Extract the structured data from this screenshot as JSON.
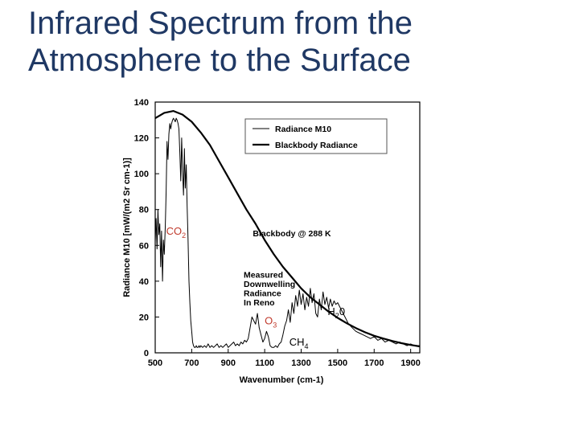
{
  "slide": {
    "title_line1": "Infrared Spectrum from the",
    "title_line2": "Atmosphere to the Surface"
  },
  "chart_data": {
    "type": "line",
    "title": "",
    "xlabel": "Wavenumber (cm-1)",
    "ylabel": "Radiance M10 [mW/(m2 Sr cm-1)]",
    "xlim": [
      500,
      1950
    ],
    "ylim": [
      0,
      140
    ],
    "xticks": [
      500,
      700,
      900,
      1100,
      1300,
      1500,
      1700,
      1900
    ],
    "yticks": [
      0,
      20,
      40,
      60,
      80,
      100,
      120,
      140
    ],
    "grid": false,
    "legend": {
      "position": "top-right",
      "entries": [
        "Radiance M10",
        "Blackbody Radiance"
      ]
    },
    "series": [
      {
        "name": "Radiance M10",
        "color": "#000000",
        "x": [
          500,
          505,
          510,
          515,
          520,
          525,
          530,
          535,
          540,
          545,
          550,
          555,
          560,
          565,
          570,
          575,
          580,
          585,
          590,
          595,
          600,
          605,
          610,
          615,
          620,
          625,
          630,
          635,
          640,
          645,
          650,
          655,
          660,
          665,
          670,
          675,
          680,
          685,
          690,
          695,
          700,
          705,
          710,
          715,
          720,
          725,
          730,
          735,
          740,
          745,
          750,
          760,
          770,
          780,
          790,
          800,
          810,
          820,
          830,
          840,
          850,
          860,
          870,
          880,
          890,
          900,
          910,
          920,
          930,
          940,
          950,
          960,
          970,
          980,
          990,
          1000,
          1010,
          1020,
          1030,
          1040,
          1050,
          1060,
          1070,
          1080,
          1090,
          1100,
          1110,
          1120,
          1130,
          1140,
          1150,
          1160,
          1170,
          1180,
          1190,
          1200,
          1210,
          1220,
          1230,
          1240,
          1250,
          1260,
          1270,
          1280,
          1290,
          1300,
          1310,
          1320,
          1330,
          1340,
          1350,
          1360,
          1370,
          1380,
          1390,
          1400,
          1410,
          1420,
          1430,
          1440,
          1450,
          1460,
          1470,
          1480,
          1490,
          1500,
          1520,
          1540,
          1560,
          1580,
          1600,
          1620,
          1640,
          1660,
          1680,
          1700,
          1720,
          1740,
          1760,
          1780,
          1800,
          1820,
          1840,
          1860,
          1880,
          1900,
          1920,
          1940,
          1950
        ],
        "y": [
          62,
          75,
          58,
          80,
          66,
          72,
          48,
          68,
          40,
          63,
          55,
          70,
          90,
          118,
          108,
          122,
          128,
          125,
          128,
          130,
          131,
          130,
          129,
          131,
          130,
          128,
          125,
          112,
          96,
          120,
          102,
          88,
          114,
          92,
          105,
          82,
          64,
          40,
          28,
          18,
          12,
          6,
          4,
          3,
          3,
          4,
          3,
          3,
          4,
          3,
          4,
          3,
          4,
          3,
          5,
          3,
          4,
          3,
          4,
          5,
          3,
          4,
          3,
          4,
          5,
          3,
          4,
          5,
          6,
          4,
          5,
          4,
          6,
          5,
          7,
          6,
          8,
          14,
          20,
          18,
          16,
          22,
          14,
          10,
          6,
          8,
          12,
          9,
          4,
          3,
          3,
          4,
          3,
          5,
          6,
          10,
          15,
          18,
          24,
          17,
          28,
          22,
          32,
          26,
          35,
          27,
          33,
          24,
          31,
          26,
          36,
          28,
          33,
          22,
          20,
          30,
          24,
          34,
          27,
          31,
          25,
          30,
          26,
          29,
          27,
          28,
          24,
          20,
          16,
          14,
          12,
          11,
          10,
          9,
          8,
          9,
          7,
          8,
          6,
          7,
          6,
          5,
          6,
          5,
          4,
          5,
          4,
          4,
          4
        ]
      },
      {
        "name": "Blackbody Radiance",
        "color": "#000000",
        "x": [
          500,
          550,
          600,
          650,
          700,
          750,
          800,
          850,
          900,
          950,
          1000,
          1050,
          1100,
          1150,
          1200,
          1250,
          1300,
          1350,
          1400,
          1450,
          1500,
          1550,
          1600,
          1650,
          1700,
          1750,
          1800,
          1850,
          1900,
          1950
        ],
        "y": [
          131,
          134,
          135,
          133,
          129,
          123,
          116,
          107,
          98,
          89,
          80,
          72,
          63,
          55,
          48,
          42,
          36,
          31,
          27,
          23,
          19.5,
          16.5,
          13.8,
          11.5,
          9.5,
          8,
          6.6,
          5.4,
          4.4,
          3.6
        ]
      }
    ],
    "annotations": [
      {
        "text": "CO2",
        "main": "CO",
        "sub": "2",
        "x": 560,
        "y": 66,
        "color": "#c0392b"
      },
      {
        "text": "Blackbody @ 288 K",
        "x": 1035,
        "y": 65,
        "color": "#000000"
      },
      {
        "text": "Measured Downwelling Radiance In Reno",
        "lines": [
          "Measured",
          "Downwelling",
          "Radiance",
          "In Reno"
        ],
        "x": 985,
        "y": 42,
        "color": "#000000"
      },
      {
        "text": "O3",
        "main": "O",
        "sub": "3",
        "x": 1100,
        "y": 16,
        "color": "#c0392b"
      },
      {
        "text": "CH4",
        "main": "CH",
        "sub": "4",
        "x": 1235,
        "y": 4,
        "color": "#000000"
      },
      {
        "text": "H20",
        "main": "H",
        "sub": "2",
        "tail": "0",
        "x": 1445,
        "y": 21,
        "color": "#000000"
      }
    ]
  }
}
